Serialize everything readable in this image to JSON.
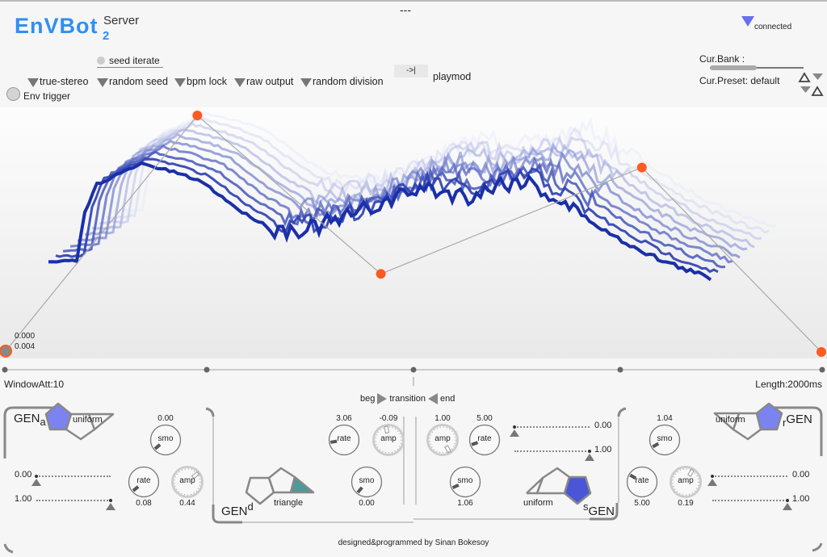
{
  "header": {
    "title": "EnVBot",
    "title_sub": "2",
    "title_sup": "Server",
    "status_dashes": "---",
    "connection": "connected",
    "accent": "#2f8ff0"
  },
  "toolbar": {
    "true_stereo": "true-stereo",
    "seed_iterate": "seed iterate",
    "random_seed": "random seed",
    "bpm_lock": "bpm lock",
    "raw_output": "raw output",
    "random_division": "random division",
    "playmod_button": "->|",
    "playmod": "playmod",
    "env_trigger": "Env trigger"
  },
  "bank": {
    "bank_label": "Cur.Bank  :",
    "preset_label": "Cur.Preset:",
    "preset_value": "default"
  },
  "envelope": {
    "readout_1": "0.000",
    "readout_2": "0.004",
    "points": [
      [
        0,
        0.004
      ],
      [
        0.235,
        1.0
      ],
      [
        0.46,
        0.33
      ],
      [
        0.78,
        0.78
      ],
      [
        1.0,
        0.0
      ]
    ],
    "point_color": "#ff5a1f",
    "wave_color": "#1a2fa8"
  },
  "timeline": {
    "window_att": "WindowAtt:10",
    "length": "Length:2000ms",
    "beg": "beg",
    "transition": "transition",
    "end": "end"
  },
  "gen_a": {
    "label": "GEN",
    "sub": "a",
    "dist": "uniform",
    "smo": {
      "label": "smo",
      "value": "0.00"
    },
    "rate": {
      "label": "rate",
      "value": "0.08"
    },
    "amp": {
      "label": "amp",
      "value": "0.44"
    },
    "min": "0.00",
    "max": "1.00"
  },
  "gen_d": {
    "label": "GEN",
    "sup": "d",
    "dist": "triangle",
    "rate": {
      "label": "rate",
      "value": "3.06"
    },
    "amp": {
      "label": "amp",
      "value": "-0.09"
    },
    "smo": {
      "label": "smo",
      "value": "0.00"
    }
  },
  "gen_s": {
    "label": "GEN",
    "sup": "s",
    "dist": "uniform",
    "amp": {
      "label": "amp",
      "value": "1.00"
    },
    "rate": {
      "label": "rate",
      "value": "5.00"
    },
    "smo": {
      "label": "smo",
      "value": "1.06"
    },
    "min": "0.00",
    "max": "1.00"
  },
  "gen_r": {
    "label": "GEN",
    "sub": "r",
    "dist": "uniform",
    "smo": {
      "label": "smo",
      "value": "1.04"
    },
    "rate": {
      "label": "rate",
      "value": "5.00"
    },
    "amp": {
      "label": "amp",
      "value": "0.19"
    },
    "min": "0.00",
    "max": "1.00"
  },
  "footer": {
    "credit": "designed&programmed by Sinan Bokesoy"
  }
}
